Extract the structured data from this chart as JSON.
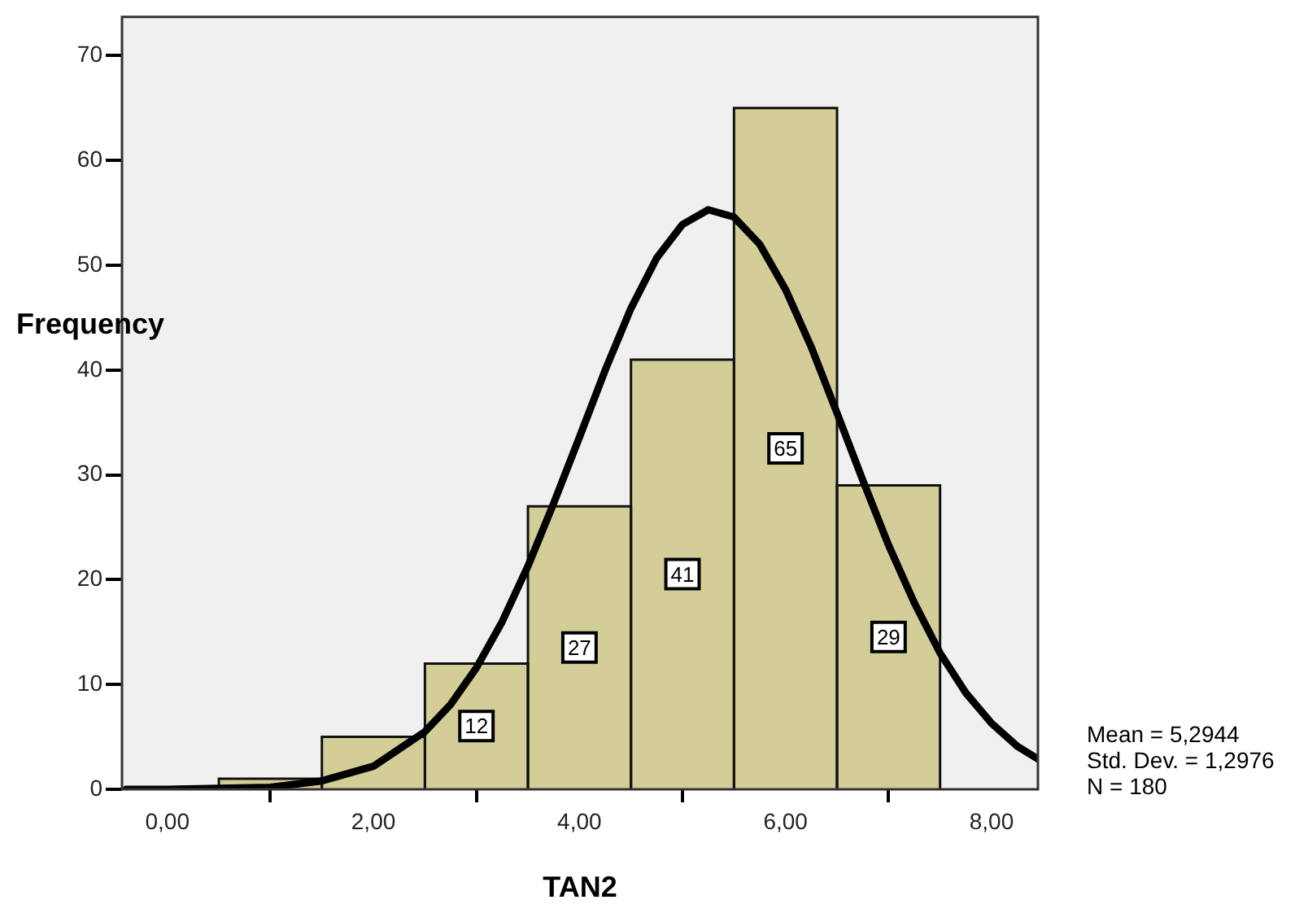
{
  "chart_data": {
    "type": "histogram",
    "xlabel": "TAN2",
    "ylabel": "Frequency",
    "bins": [
      0.5,
      1.5,
      2.5,
      3.5,
      4.5,
      5.5,
      6.5,
      7.5
    ],
    "values": [
      1,
      5,
      12,
      27,
      41,
      65,
      29
    ],
    "color": "#d3ce98",
    "value_labels": [
      null,
      null,
      "12",
      "27",
      "41",
      "65",
      "29"
    ],
    "xlim": [
      -0.44,
      8.45
    ],
    "ylim": [
      0,
      73.7
    ],
    "xticks": [
      {
        "value": 0,
        "label": "0,00"
      },
      {
        "value": 2,
        "label": "2,00"
      },
      {
        "value": 4,
        "label": "4,00"
      },
      {
        "value": 6,
        "label": "6,00"
      },
      {
        "value": 8,
        "label": "8,00"
      }
    ],
    "yticks": [
      0,
      10,
      20,
      30,
      40,
      50,
      60,
      70
    ],
    "grid": false,
    "legend": false,
    "series": [
      {
        "type": "line",
        "color": "#000000",
        "x": [
          -0.4,
          0,
          0.5,
          1,
          1.5,
          2,
          2.5,
          2.75,
          3,
          3.25,
          3.5,
          3.75,
          4,
          4.25,
          4.5,
          4.75,
          5,
          5.25,
          5.5,
          5.75,
          6,
          6.25,
          6.5,
          6.75,
          7,
          7.25,
          7.5,
          7.75,
          8,
          8.25,
          8.45
        ],
        "values": [
          0,
          0,
          0.1,
          0.2,
          0.8,
          2.2,
          5.5,
          8.1,
          11.6,
          16,
          21.3,
          27.3,
          33.6,
          40,
          45.9,
          50.7,
          53.9,
          55.3,
          54.6,
          52,
          47.7,
          42.2,
          35.9,
          29.5,
          23.3,
          17.8,
          13,
          9.2,
          6.3,
          4.1,
          2.9
        ]
      }
    ],
    "annotations": [
      "Mean = 5,2944",
      "Std. Dev. = 1,2976",
      "N = 180"
    ]
  }
}
